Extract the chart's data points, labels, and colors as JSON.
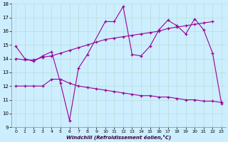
{
  "xlabel": "Windchill (Refroidissement éolien,°C)",
  "background_color": "#cceeff",
  "grid_color": "#b8ddd8",
  "line_color": "#990099",
  "xlim": [
    -0.5,
    23.5
  ],
  "ylim": [
    9,
    18
  ],
  "yticks": [
    9,
    10,
    11,
    12,
    13,
    14,
    15,
    16,
    17,
    18
  ],
  "xticks": [
    0,
    1,
    2,
    3,
    4,
    5,
    6,
    7,
    8,
    9,
    10,
    11,
    12,
    13,
    14,
    15,
    16,
    17,
    18,
    19,
    20,
    21,
    22,
    23
  ],
  "series": [
    {
      "x": [
        0,
        1,
        2,
        3,
        4,
        5,
        6,
        7,
        8,
        10,
        11,
        12,
        13,
        14,
        15,
        16,
        17,
        18,
        19,
        20,
        21,
        22,
        23
      ],
      "y": [
        14.9,
        14.0,
        13.8,
        14.2,
        14.5,
        12.2,
        9.5,
        13.3,
        14.3,
        16.7,
        16.7,
        17.8,
        14.3,
        14.2,
        14.9,
        16.1,
        16.8,
        16.4,
        15.8,
        16.9,
        16.1,
        14.4,
        10.7
      ]
    },
    {
      "x": [
        0,
        1,
        2,
        3,
        4,
        5,
        6,
        7,
        8,
        9,
        10,
        11,
        12,
        13,
        14,
        15,
        16,
        17,
        18,
        19,
        20,
        21,
        22
      ],
      "y": [
        14.0,
        13.9,
        13.9,
        14.1,
        14.2,
        14.4,
        14.6,
        14.8,
        15.0,
        15.2,
        15.4,
        15.5,
        15.6,
        15.7,
        15.8,
        15.9,
        16.0,
        16.2,
        16.3,
        16.4,
        16.5,
        16.6,
        16.7
      ]
    },
    {
      "x": [
        0,
        1,
        2,
        3,
        4,
        5,
        6,
        7,
        8,
        9,
        10,
        11,
        12,
        13,
        14,
        15,
        16,
        17,
        18,
        19,
        20,
        21,
        22,
        23
      ],
      "y": [
        12.0,
        12.0,
        12.0,
        12.0,
        12.5,
        12.5,
        12.2,
        12.0,
        11.9,
        11.8,
        11.7,
        11.6,
        11.5,
        11.4,
        11.3,
        11.3,
        11.2,
        11.2,
        11.1,
        11.0,
        11.0,
        10.9,
        10.9,
        10.8
      ]
    }
  ]
}
